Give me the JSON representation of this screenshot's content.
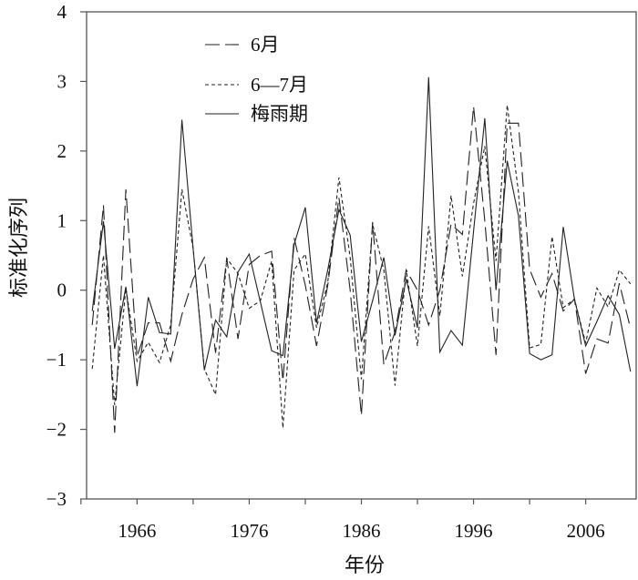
{
  "chart_data": {
    "type": "line",
    "xlabel": "年份",
    "ylabel": "标准化序列",
    "xlim": [
      1961.5,
      2010.5
    ],
    "ylim": [
      -3,
      4
    ],
    "x_ticks": [
      1966,
      1976,
      1986,
      1996,
      2006
    ],
    "y_ticks": [
      4,
      3,
      2,
      1,
      0,
      -1,
      -2,
      -3
    ],
    "y_tick_labels": [
      "4",
      "3",
      "2",
      "1",
      "0",
      "−1",
      "−2",
      "−3"
    ],
    "x_tick_labels": [
      "1966",
      "1976",
      "1986",
      "1996",
      "2006"
    ],
    "grid": false,
    "legend_position": "top-left",
    "line_color": "#222222",
    "x": [
      1962,
      1963,
      1964,
      1965,
      1966,
      1967,
      1968,
      1969,
      1970,
      1971,
      1972,
      1973,
      1974,
      1975,
      1976,
      1977,
      1978,
      1979,
      1980,
      1981,
      1982,
      1983,
      1984,
      1985,
      1986,
      1987,
      1988,
      1989,
      1990,
      1991,
      1992,
      1993,
      1994,
      1995,
      1996,
      1997,
      1998,
      1999,
      2000,
      2001,
      2002,
      2003,
      2004,
      2005,
      2006,
      2007,
      2008,
      2009,
      2010
    ],
    "series": [
      {
        "name": "6月",
        "style": "long-dash",
        "values": [
          -0.5,
          1.22,
          -2.05,
          1.45,
          -0.95,
          -0.47,
          -0.47,
          -1.02,
          -0.35,
          0.16,
          0.47,
          -0.9,
          0.46,
          -0.7,
          0.37,
          0.5,
          0.56,
          -1.3,
          0.75,
          0.07,
          -0.8,
          0.07,
          1.33,
          0.0,
          -1.8,
          0.98,
          -1.07,
          -0.6,
          0.29,
          0.0,
          -0.5,
          0.0,
          0.95,
          0.8,
          2.64,
          1.0,
          -0.93,
          2.4,
          2.4,
          0.3,
          -0.1,
          0.24,
          -0.3,
          -0.13,
          -1.2,
          -0.7,
          -0.76,
          0.1,
          -0.55
        ]
      },
      {
        "name": "6—7月",
        "style": "short-dash",
        "values": [
          -1.13,
          0.5,
          -1.65,
          0.03,
          -1.02,
          -0.75,
          -1.04,
          -0.5,
          1.45,
          0.6,
          -1.13,
          -1.5,
          0.46,
          0.24,
          -0.26,
          -0.15,
          0.42,
          -1.98,
          0.29,
          0.52,
          -0.54,
          0.11,
          1.62,
          0.47,
          -1.28,
          0.95,
          0.29,
          -1.37,
          0.29,
          -0.8,
          0.92,
          -0.37,
          1.36,
          0.2,
          1.25,
          2.07,
          0.42,
          2.66,
          1.42,
          -0.83,
          -0.78,
          0.77,
          -0.25,
          -0.13,
          -0.76,
          0.03,
          -0.24,
          0.29,
          0.09
        ]
      },
      {
        "name": "梅雨期",
        "style": "solid",
        "values": [
          -0.3,
          0.99,
          -0.84,
          0.05,
          -1.38,
          -0.1,
          -0.61,
          -0.63,
          2.45,
          0.6,
          -1.15,
          -0.43,
          -0.67,
          0.26,
          0.52,
          -0.17,
          -0.87,
          -0.94,
          0.66,
          1.19,
          -0.47,
          0.29,
          1.16,
          0.79,
          -0.74,
          -0.15,
          0.47,
          -0.65,
          0.16,
          -0.54,
          3.06,
          -0.89,
          -0.58,
          -0.79,
          0.85,
          2.47,
          0.0,
          1.86,
          1.07,
          -0.91,
          -1.0,
          -0.93,
          0.91,
          -0.13,
          -0.8,
          -0.45,
          -0.08,
          -0.35,
          -1.17
        ]
      }
    ]
  }
}
